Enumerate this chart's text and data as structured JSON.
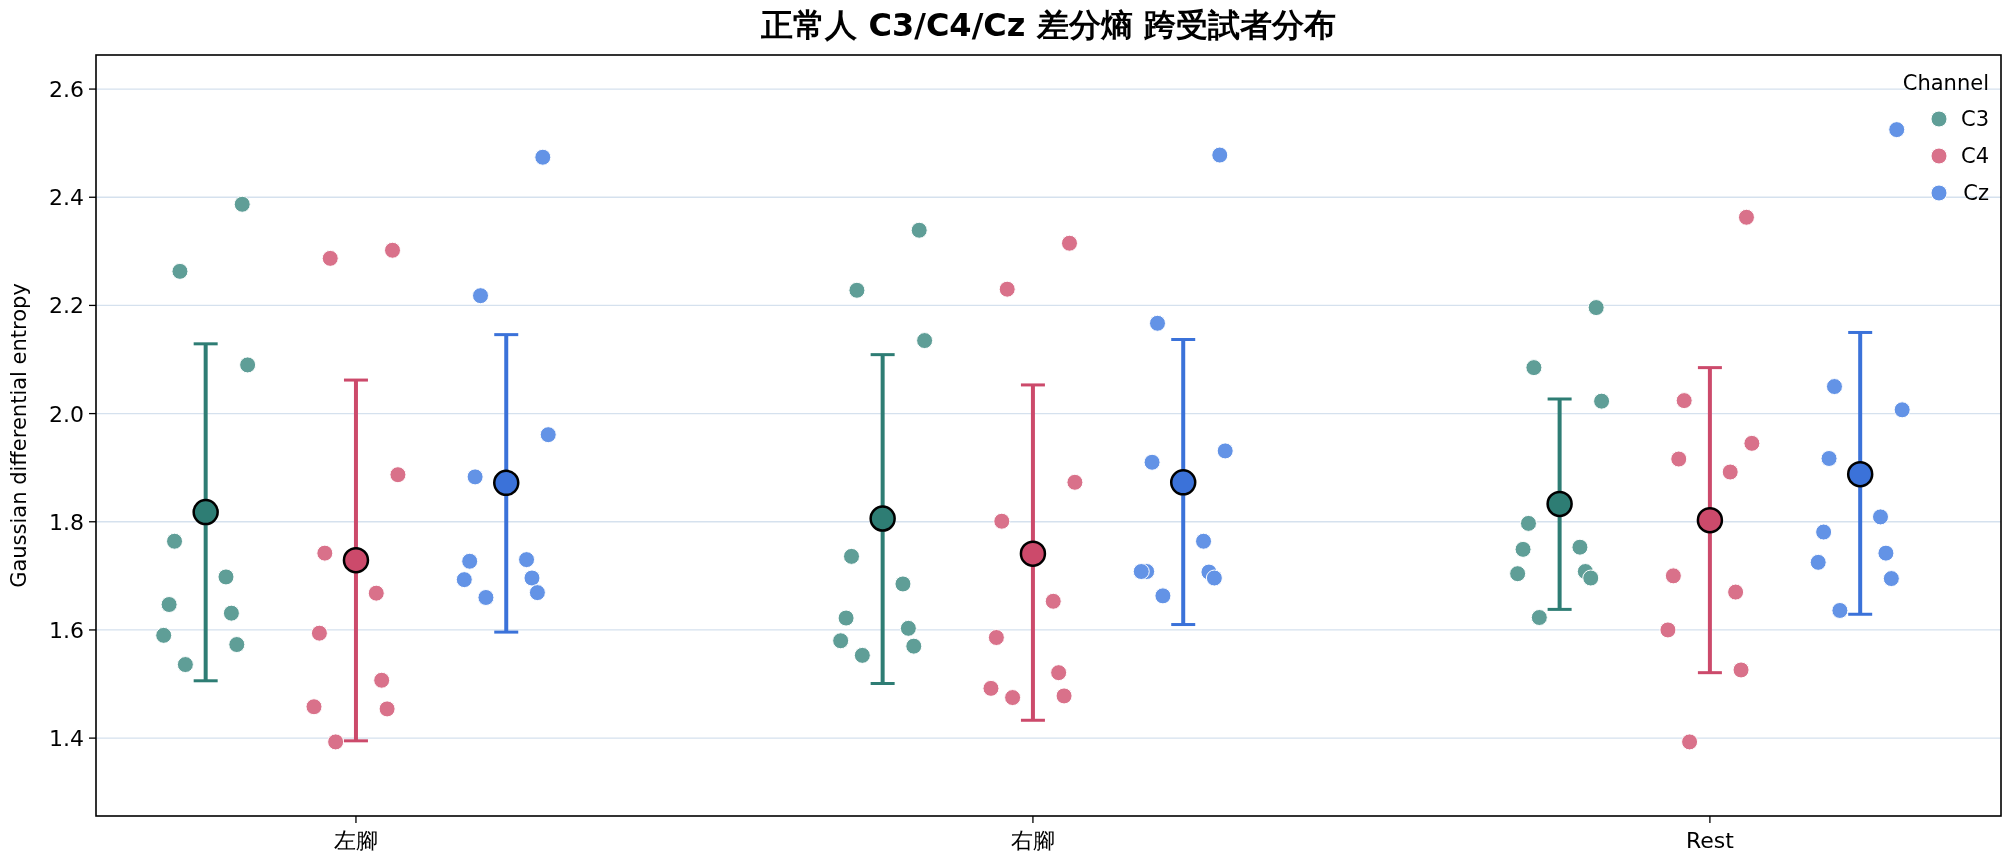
{
  "chart_data": {
    "type": "scatter",
    "title": "正常人 C3/C4/Cz 差分熵 跨受試者分布",
    "ylabel": "Gaussian differential entropy",
    "legend_title": "Channel",
    "categories": [
      "左腳",
      "右腳",
      "Rest"
    ],
    "ylim": [
      1.256,
      2.663
    ],
    "yticks": [
      {
        "value": 1.4,
        "label": "1.4"
      },
      {
        "value": 1.6,
        "label": "1.6"
      },
      {
        "value": 1.8,
        "label": "1.8"
      },
      {
        "value": 2,
        "label": "2.0"
      },
      {
        "value": 2.2,
        "label": "2.2"
      },
      {
        "value": 2.4,
        "label": "2.4"
      },
      {
        "value": 2.6,
        "label": "2.6"
      }
    ],
    "grid": "y",
    "legend": "top right",
    "marker": "circle",
    "series": [
      {
        "name": "C3",
        "color": "#5f9e97",
        "x": [
          "左腳",
          "左腳",
          "左腳",
          "左腳",
          "左腳",
          "左腳",
          "左腳",
          "左腳",
          "左腳",
          "左腳",
          "右腳",
          "右腳",
          "右腳",
          "右腳",
          "右腳",
          "右腳",
          "右腳",
          "右腳",
          "右腳",
          "右腳",
          "Rest",
          "Rest",
          "Rest",
          "Rest",
          "Rest",
          "Rest",
          "Rest",
          "Rest",
          "Rest",
          "Rest"
        ],
        "values": [
          2.387,
          2.263,
          2.09,
          1.764,
          1.698,
          1.647,
          1.631,
          1.59,
          1.573,
          1.536,
          2.339,
          2.228,
          2.135,
          1.736,
          1.685,
          1.622,
          1.603,
          1.58,
          1.57,
          1.553,
          2.196,
          2.085,
          2.023,
          1.797,
          1.753,
          1.749,
          1.708,
          1.704,
          1.696,
          1.623
        ]
      },
      {
        "type": "scatter",
        "color": "#2e7d74",
        "x": [
          "左腳",
          "右腳",
          "Rest"
        ],
        "values": [
          1.818,
          1.806,
          1.833
        ],
        "errors": [
          [
            1.506,
            2.129
          ],
          [
            1.501,
            2.109
          ],
          [
            1.638,
            2.027
          ]
        ]
      },
      {
        "name": "C4",
        "color": "#d9718a",
        "x": [
          "左腳",
          "左腳",
          "左腳",
          "左腳",
          "左腳",
          "左腳",
          "左腳",
          "左腳",
          "左腳",
          "左腳",
          "右腳",
          "右腳",
          "右腳",
          "右腳",
          "右腳",
          "右腳",
          "右腳",
          "右腳",
          "右腳",
          "右腳",
          "Rest",
          "Rest",
          "Rest",
          "Rest",
          "Rest",
          "Rest",
          "Rest",
          "Rest",
          "Rest",
          "Rest"
        ],
        "values": [
          2.302,
          2.287,
          1.887,
          1.742,
          1.668,
          1.594,
          1.507,
          1.458,
          1.454,
          1.393,
          2.315,
          2.23,
          1.873,
          1.801,
          1.653,
          1.586,
          1.521,
          1.492,
          1.478,
          1.475,
          2.363,
          2.024,
          1.945,
          1.916,
          1.892,
          1.7,
          1.67,
          1.6,
          1.526,
          1.393
        ]
      },
      {
        "type": "scatter",
        "color": "#cc4a6b",
        "x": [
          "左腳",
          "右腳",
          "Rest"
        ],
        "values": [
          1.729,
          1.741,
          1.803
        ],
        "errors": [
          [
            1.395,
            2.062
          ],
          [
            1.433,
            2.053
          ],
          [
            1.521,
            2.085
          ]
        ]
      },
      {
        "name": "Cz",
        "color": "#6393e6",
        "x": [
          "左腳",
          "左腳",
          "左腳",
          "左腳",
          "左腳",
          "左腳",
          "左腳",
          "左腳",
          "左腳",
          "左腳",
          "右腳",
          "右腳",
          "右腳",
          "右腳",
          "右腳",
          "右腳",
          "右腳",
          "右腳",
          "右腳",
          "右腳",
          "Rest",
          "Rest",
          "Rest",
          "Rest",
          "Rest",
          "Rest",
          "Rest",
          "Rest",
          "Rest",
          "Rest"
        ],
        "values": [
          2.474,
          2.218,
          1.961,
          1.883,
          1.73,
          1.727,
          1.696,
          1.693,
          1.669,
          1.66,
          2.478,
          2.167,
          1.931,
          1.91,
          1.764,
          1.708,
          1.707,
          1.708,
          1.696,
          1.663,
          2.525,
          2.05,
          2.007,
          1.917,
          1.809,
          1.781,
          1.742,
          1.725,
          1.695,
          1.636
        ]
      },
      {
        "type": "scatter",
        "color": "#3b72d9",
        "x": [
          "左腳",
          "右腳",
          "Rest"
        ],
        "values": [
          1.872,
          1.873,
          1.888
        ],
        "errors": [
          [
            1.596,
            2.146
          ],
          [
            1.61,
            2.137
          ],
          [
            1.629,
            2.15
          ]
        ]
      }
    ]
  }
}
